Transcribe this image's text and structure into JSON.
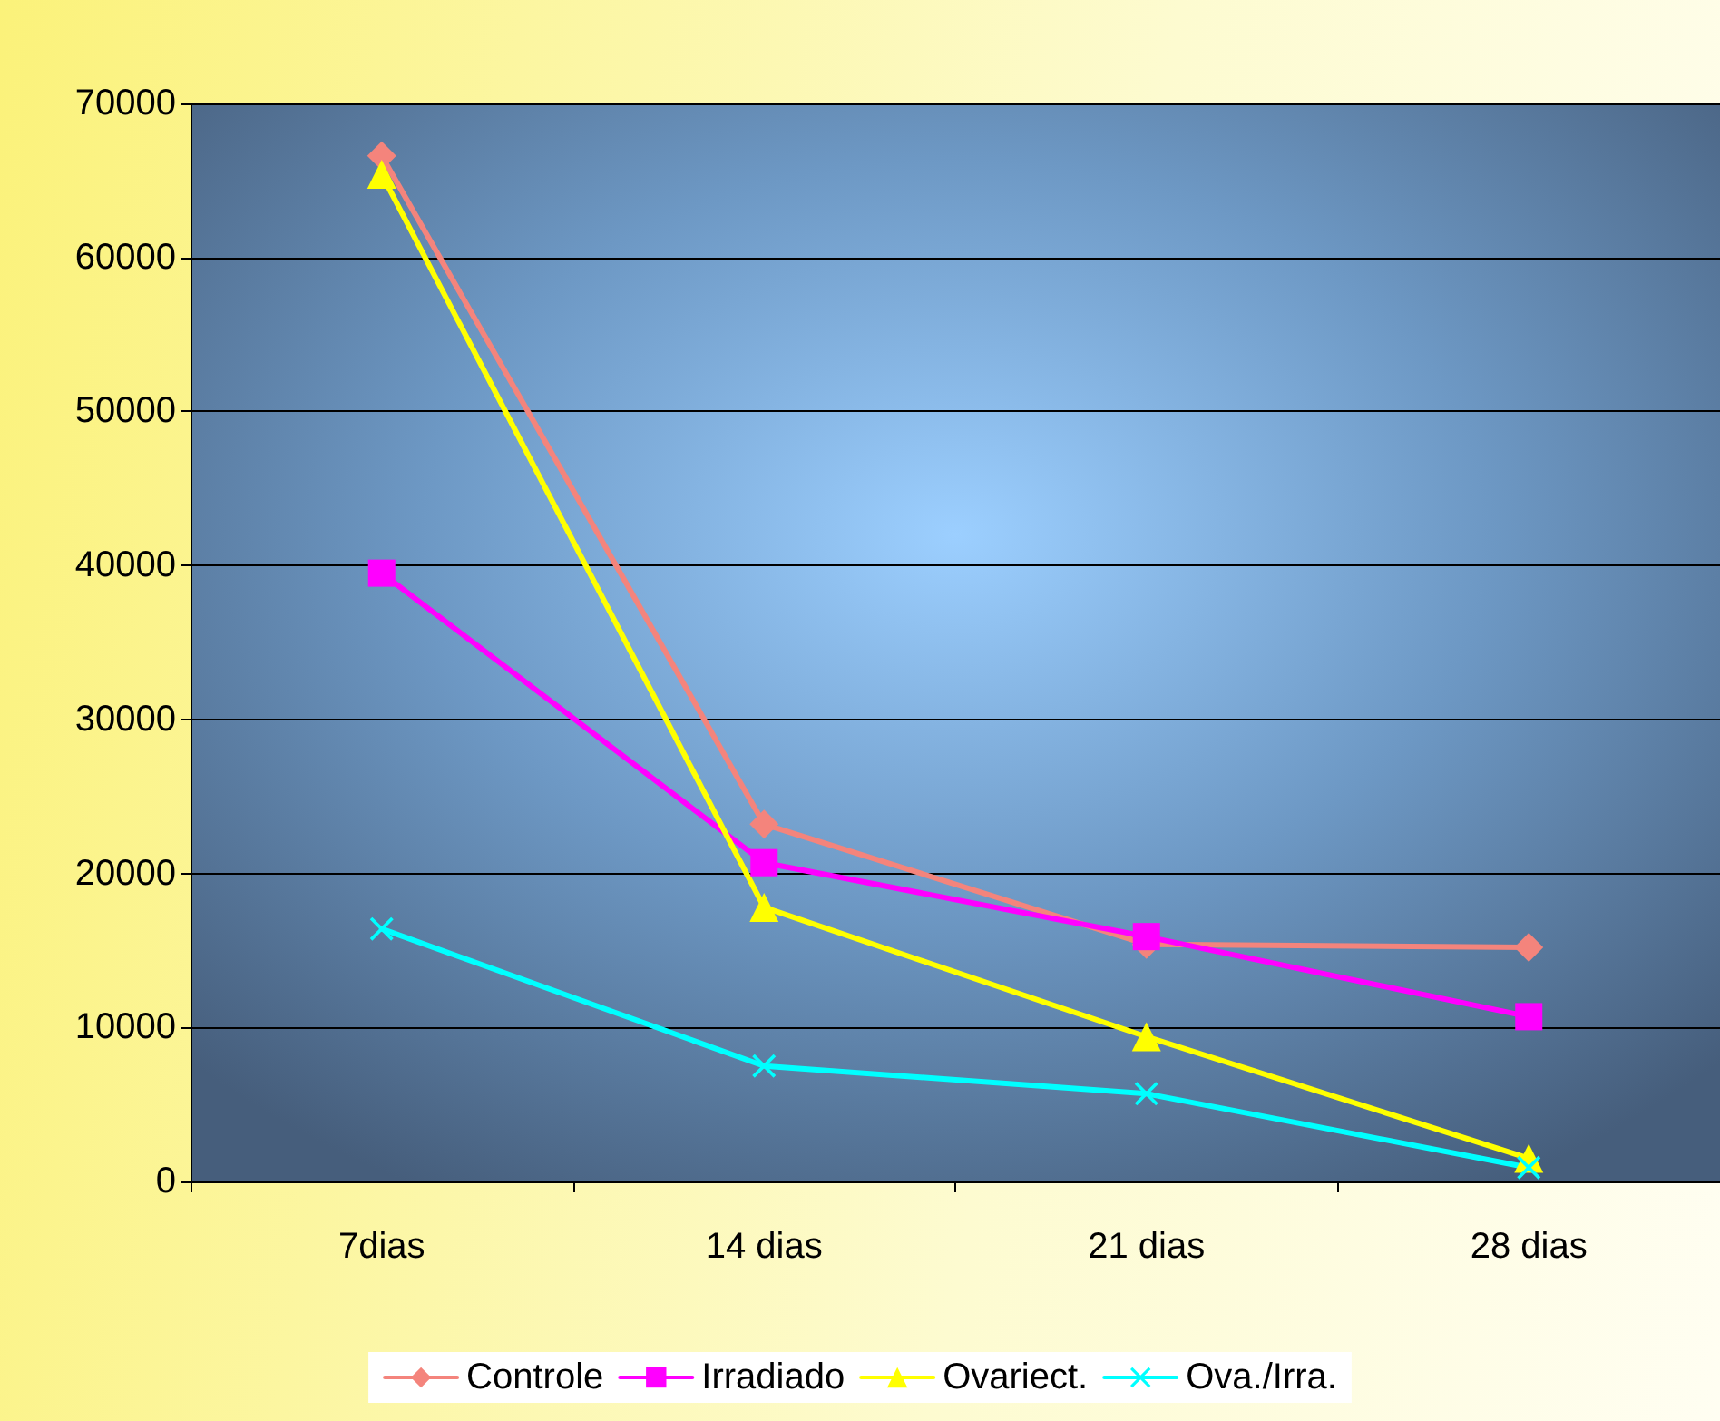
{
  "chart_data": {
    "type": "line",
    "categories": [
      "7dias",
      "14 dias",
      "21 dias",
      "28 dias"
    ],
    "series": [
      {
        "name": "Controle",
        "color": "#f4847c",
        "marker": "diamond",
        "values": [
          66600,
          23200,
          15400,
          15200
        ]
      },
      {
        "name": "Irradiado",
        "color": "#ff00ff",
        "marker": "square",
        "values": [
          39500,
          20700,
          15900,
          10700
        ]
      },
      {
        "name": "Ovariect.",
        "color": "#ffff00",
        "marker": "triangle",
        "values": [
          65400,
          17800,
          9400,
          1500
        ]
      },
      {
        "name": "Ova./Irra.",
        "color": "#00ffff",
        "marker": "cross",
        "values": [
          16400,
          7500,
          5700,
          900
        ]
      }
    ],
    "ylim": [
      0,
      70000
    ],
    "yticks": [
      0,
      10000,
      20000,
      30000,
      40000,
      50000,
      60000,
      70000
    ],
    "grid": "y",
    "legend": "bottom",
    "line_style": "solid"
  }
}
